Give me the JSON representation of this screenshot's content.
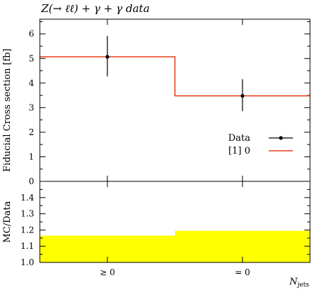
{
  "chart_data": [
    {
      "type": "line",
      "title": "Z(→ ℓℓ) + γ + γ data",
      "ylabel": "Fiducial Cross section [fb]",
      "ylim": [
        0,
        6.6
      ],
      "yticks": [
        "0",
        "1",
        "2",
        "3",
        "4",
        "5",
        "6"
      ],
      "categories": [
        "≥ 0",
        "= 0"
      ],
      "series": [
        {
          "name": "Data",
          "values": [
            5.07,
            3.48
          ],
          "err_low": [
            0.8,
            0.62
          ],
          "err_high": [
            0.85,
            0.68
          ],
          "color": "#000000"
        },
        {
          "name": "[1] 0",
          "values": [
            5.07,
            3.48
          ],
          "color": "#e8401c"
        }
      ],
      "legend": "lower-right"
    },
    {
      "type": "area",
      "ylabel": "MC/Data",
      "xlabel": "N_jets",
      "ylim": [
        1.0,
        1.5
      ],
      "yticks": [
        "1.0",
        "1.1",
        "1.2",
        "1.3",
        "1.4"
      ],
      "categories": [
        "≥ 0",
        "= 0"
      ],
      "band_low": [
        1.0,
        1.0
      ],
      "band_high": [
        1.165,
        1.195
      ],
      "band_color": "#ffff00",
      "xlabel_main": "N",
      "xlabel_sub": "jets"
    }
  ]
}
